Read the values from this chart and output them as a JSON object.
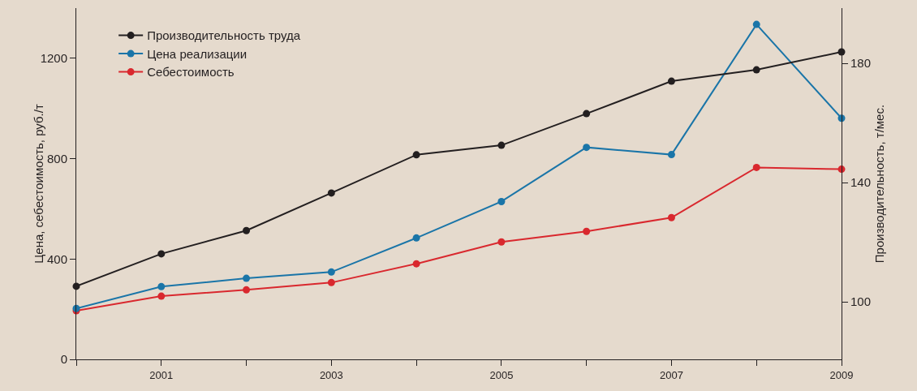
{
  "chart_data": {
    "type": "line",
    "ylabel": "Цена, себестоимость, руб./т",
    "y2label": "Производительность, т/мес.",
    "x": [
      2000,
      2001,
      2002,
      2003,
      2004,
      2005,
      2006,
      2007,
      2008,
      2009
    ],
    "xlim": [
      2000,
      2009
    ],
    "xticks": [
      {
        "value": 2000,
        "label": null
      },
      2001,
      {
        "value": 2002,
        "label": null
      },
      2003,
      {
        "value": 2004,
        "label": null
      },
      2005,
      {
        "value": 2006,
        "label": null
      },
      2007,
      {
        "value": 2008,
        "label": null
      },
      2009
    ],
    "ylim": [
      0,
      1400
    ],
    "yticks": [
      0,
      400,
      800,
      1200
    ],
    "y2lim": [
      80.7,
      198.5
    ],
    "y2ticks": [
      100,
      140,
      180
    ],
    "series": [
      {
        "name": "Производительность труда",
        "color": "#231f20",
        "axis": "y2",
        "values": [
          105.2,
          116.1,
          123.9,
          136.5,
          149.3,
          152.5,
          163.1,
          174.0,
          177.8,
          183.8
        ]
      },
      {
        "name": "Цена реализации",
        "color": "#1a75a8",
        "values": [
          203,
          290,
          323,
          348,
          484,
          629,
          845,
          816,
          1335,
          961
        ]
      },
      {
        "name": "Себестоимость",
        "color": "#d9282e",
        "values": [
          194,
          252,
          277,
          306,
          381,
          468,
          510,
          565,
          765,
          758
        ]
      }
    ],
    "marker": "circle",
    "line_style": "solid",
    "grid": false,
    "legend": "top left"
  }
}
